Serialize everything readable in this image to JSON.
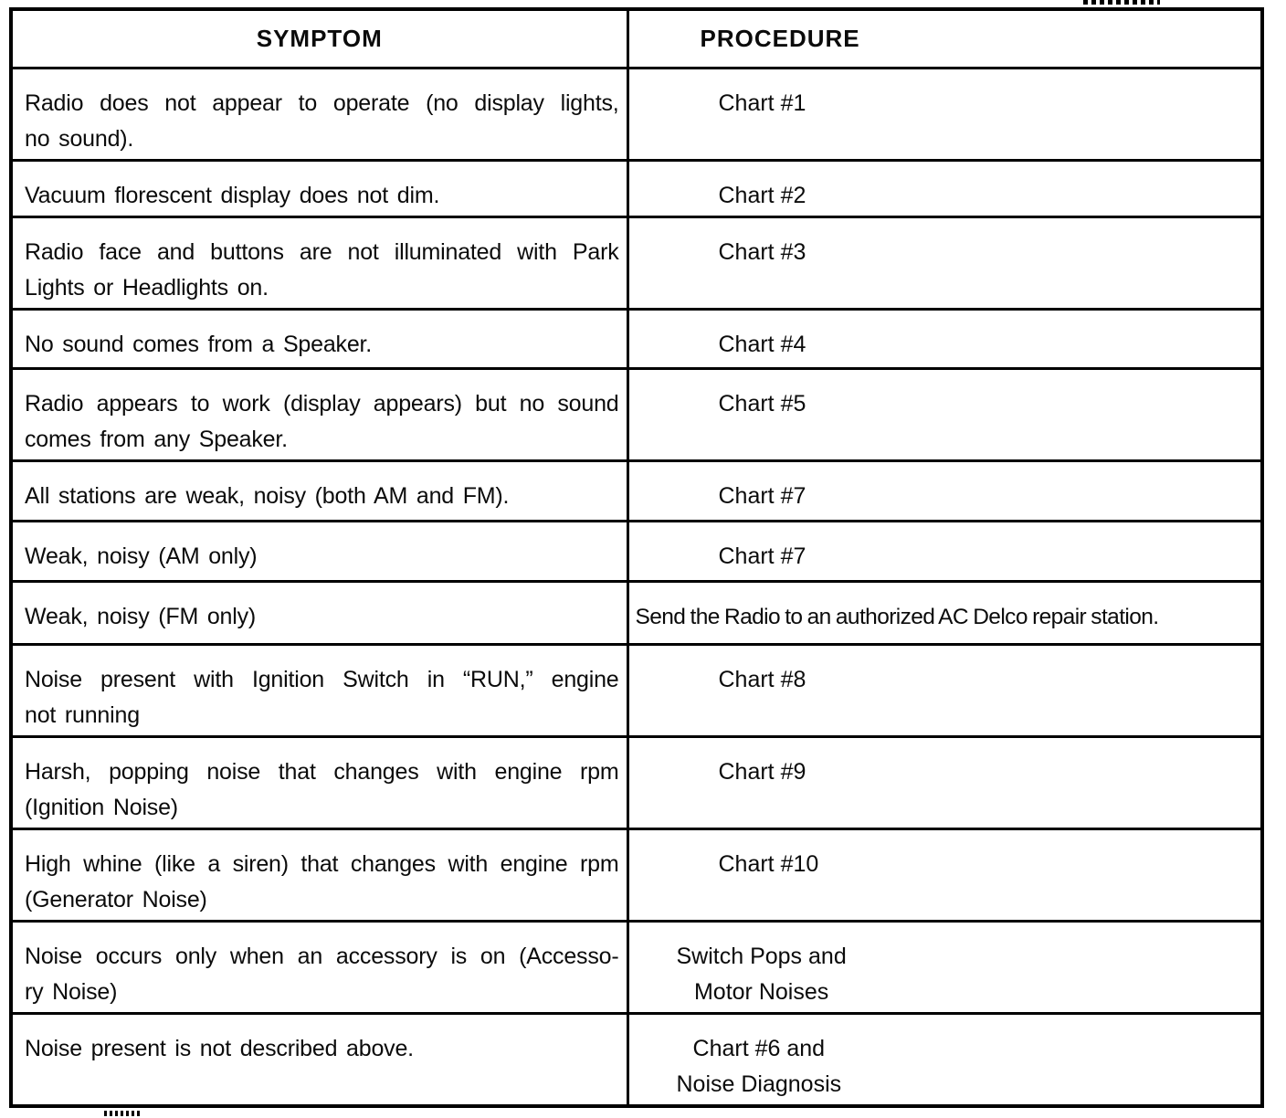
{
  "table": {
    "columns": [
      {
        "label": "SYMPTOM"
      },
      {
        "label": "PROCEDURE"
      }
    ],
    "rows": [
      {
        "symptom_lines": [
          "Radio does not appear to operate (no display lights,",
          "no sound)."
        ],
        "procedure_lines": [
          "Chart #1"
        ]
      },
      {
        "symptom_lines": [
          "Vacuum florescent display does not dim."
        ],
        "procedure_lines": [
          "Chart #2"
        ]
      },
      {
        "symptom_lines": [
          "Radio face and buttons are not illuminated with Park",
          "Lights or Headlights on."
        ],
        "procedure_lines": [
          "Chart #3"
        ]
      },
      {
        "symptom_lines": [
          "No sound comes from a Speaker."
        ],
        "procedure_lines": [
          "Chart #4"
        ]
      },
      {
        "symptom_lines": [
          "Radio appears to work (display appears) but no sound",
          "comes from any Speaker."
        ],
        "procedure_lines": [
          "Chart #5"
        ]
      },
      {
        "symptom_lines": [
          "All stations are weak, noisy (both AM and FM)."
        ],
        "procedure_lines": [
          "Chart #7"
        ]
      },
      {
        "symptom_lines": [
          "Weak, noisy (AM only)"
        ],
        "procedure_lines": [
          "Chart #7"
        ]
      },
      {
        "symptom_lines": [
          "Weak, noisy (FM only)"
        ],
        "procedure_lines": [
          "Send the Radio to an authorized AC Delco repair station."
        ]
      },
      {
        "symptom_lines": [
          "Noise present with Ignition Switch in “RUN,” engine",
          "not running"
        ],
        "procedure_lines": [
          "Chart #8"
        ]
      },
      {
        "symptom_lines": [
          "Harsh, popping noise that changes with engine rpm",
          "(Ignition Noise)"
        ],
        "procedure_lines": [
          "Chart #9"
        ]
      },
      {
        "symptom_lines": [
          "High whine (like a siren) that changes with engine rpm",
          "(Generator Noise)"
        ],
        "procedure_lines": [
          "Chart #10"
        ]
      },
      {
        "symptom_lines": [
          "Noise occurs only when an accessory is on (Accesso-",
          "ry Noise)"
        ],
        "procedure_lines": [
          "Switch Pops and",
          "Motor Noises"
        ]
      },
      {
        "symptom_lines": [
          "Noise present is not described above."
        ],
        "procedure_lines": [
          "Chart #6 and",
          "Noise Diagnosis"
        ]
      }
    ]
  }
}
